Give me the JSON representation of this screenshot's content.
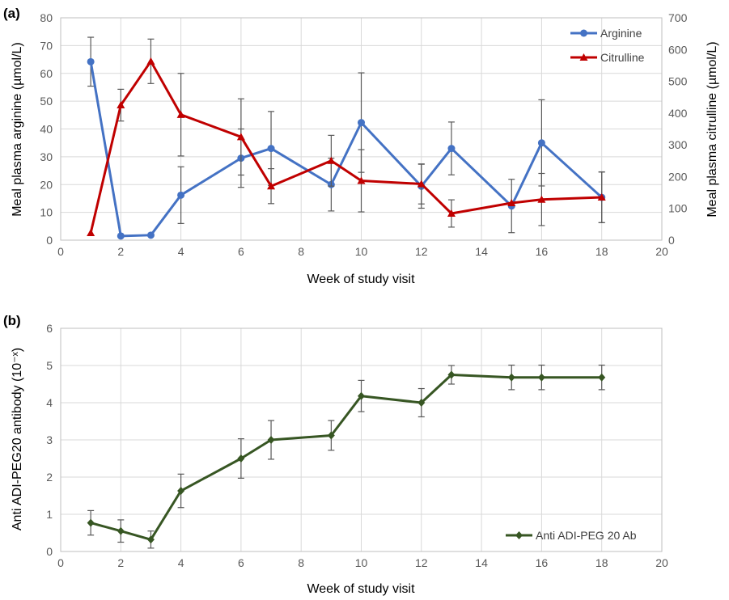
{
  "panel_a": {
    "label": "(a)",
    "xlabel": "Week of study visit",
    "ylabel_left": "Meal plasma arginine (µmol/L)",
    "ylabel_right": "Meal plasma citrulline (µmol/L)"
  },
  "panel_b": {
    "label": "(b)",
    "xlabel": "Week of study visit",
    "ylabel": "Anti ADI-PEG20 antibody (10⁻ˣ)"
  },
  "chart_data": [
    {
      "type": "line",
      "panel": "(a)",
      "xlabel": "Week of study visit",
      "ylabel": "Meal plasma arginine (µmol/L)",
      "y2label": "Meal plasma citrulline (µmol/L)",
      "xlim": [
        0,
        20
      ],
      "ylim": [
        0,
        80
      ],
      "y2lim": [
        0,
        700
      ],
      "xticks": [
        0,
        2,
        4,
        6,
        8,
        10,
        12,
        14,
        16,
        18,
        20
      ],
      "yticks": [
        0,
        10,
        20,
        30,
        40,
        50,
        60,
        70,
        80
      ],
      "y2ticks": [
        0,
        100,
        200,
        300,
        400,
        500,
        600,
        700
      ],
      "grid": true,
      "legend": "top-right",
      "series": [
        {
          "name": "Arginine",
          "axis": "left",
          "color": "#4472C4",
          "marker": "circle",
          "x": [
            1,
            2,
            3,
            4,
            6,
            7,
            9,
            10,
            12,
            13,
            15,
            16,
            18
          ],
          "y": [
            64.2,
            1.5,
            1.8,
            16.2,
            29.5,
            33.0,
            20.0,
            42.3,
            19.4,
            33.0,
            12.3,
            35.0,
            15.4
          ],
          "err": [
            8.8,
            0,
            0,
            10.2,
            10.5,
            13.3,
            9.5,
            17.9,
            7.9,
            9.5,
            9.6,
            15.5,
            9.1
          ]
        },
        {
          "name": "Citrulline",
          "axis": "right",
          "color": "#C00000",
          "marker": "triangle",
          "x": [
            1,
            2,
            3,
            4,
            6,
            7,
            9,
            10,
            12,
            13,
            15,
            16,
            18
          ],
          "y": [
            23,
            425,
            563,
            395,
            325,
            170,
            250,
            187,
            177,
            84,
            117,
            128,
            135
          ],
          "err": [
            0,
            50,
            70,
            130,
            120,
            55,
            80,
            98,
            63,
            43,
            0,
            82,
            80
          ]
        }
      ]
    },
    {
      "type": "line",
      "panel": "(b)",
      "xlabel": "Week of study visit",
      "ylabel": "Anti ADI-PEG20 antibody (10⁻ˣ)",
      "xlim": [
        0,
        20
      ],
      "ylim": [
        0,
        6
      ],
      "xticks": [
        0,
        2,
        4,
        6,
        8,
        10,
        12,
        14,
        16,
        18,
        20
      ],
      "yticks": [
        0,
        1,
        2,
        3,
        4,
        5,
        6
      ],
      "grid": true,
      "legend": "bottom-right",
      "series": [
        {
          "name": "Anti ADI-PEG 20 Ab",
          "color": "#375623",
          "marker": "diamond",
          "x": [
            1,
            2,
            3,
            4,
            6,
            7,
            9,
            10,
            12,
            13,
            15,
            16,
            18
          ],
          "y": [
            0.77,
            0.55,
            0.32,
            1.63,
            2.5,
            3.0,
            3.12,
            4.18,
            4.0,
            4.75,
            4.68,
            4.68,
            4.68
          ],
          "err": [
            0.33,
            0.3,
            0.23,
            0.45,
            0.53,
            0.52,
            0.4,
            0.42,
            0.38,
            0.25,
            0.33,
            0.33,
            0.33
          ]
        }
      ]
    }
  ]
}
